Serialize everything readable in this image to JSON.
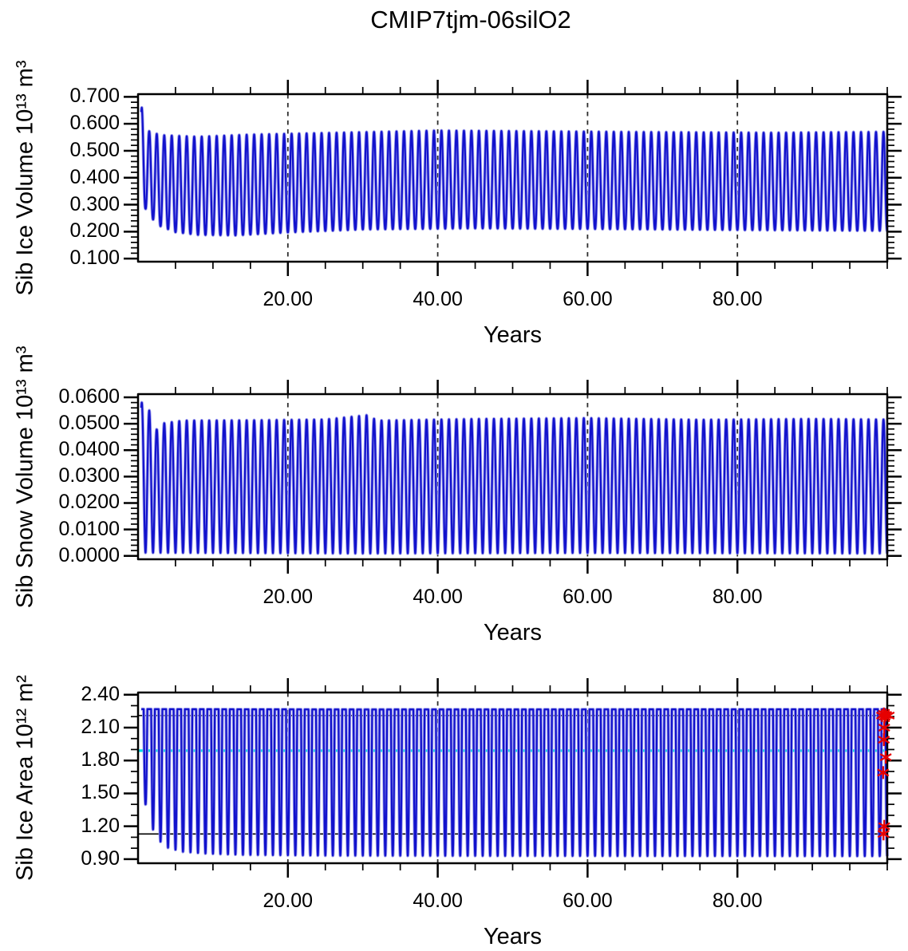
{
  "title": "CMIP7tjm-06silO2",
  "background_color": "#ffffff",
  "text_color": "#000000",
  "axis_color": "#000000",
  "gridline_color": "#2e2e2e",
  "chart_data": [
    {
      "type": "line",
      "panel": "sib-ice-volume",
      "xlabel": "Years",
      "ylabel": "Sib Ice Volume 10¹³ m³",
      "xlim": [
        0,
        100
      ],
      "ylim": [
        0.0885,
        0.71
      ],
      "x_major_ticks": [
        20,
        40,
        60,
        80
      ],
      "x_tick_labels": [
        "20.00",
        "40.00",
        "60.00",
        "80.00"
      ],
      "x_minor_step": 5,
      "y_major_ticks": [
        0.1,
        0.2,
        0.3,
        0.4,
        0.5,
        0.6,
        0.7
      ],
      "y_tick_labels": [
        "0.100",
        "0.200",
        "0.300",
        "0.400",
        "0.500",
        "0.600",
        "0.700"
      ],
      "y_minor_step": 0.02,
      "grid_x": [
        20,
        40,
        60,
        80
      ],
      "grid_style": "dashed",
      "legend": "none",
      "series": [
        {
          "name": "sib-ice-volume-annual-cycle",
          "color": "#1212cc",
          "halo_color": "#a0a0ee",
          "waveform": "pow-cos",
          "sharpness": 1.15,
          "period_years": 1,
          "t_start": 0.4375,
          "t_end": 100,
          "peak_envelope": [
            [
              0.5,
              0.66
            ],
            [
              1.5,
              0.572
            ],
            [
              3,
              0.558
            ],
            [
              8,
              0.552
            ],
            [
              15,
              0.56
            ],
            [
              25,
              0.566
            ],
            [
              40,
              0.575
            ],
            [
              55,
              0.572
            ],
            [
              70,
              0.569
            ],
            [
              85,
              0.567
            ],
            [
              99.5,
              0.57
            ]
          ],
          "trough_envelope": [
            [
              1,
              0.285
            ],
            [
              2,
              0.245
            ],
            [
              3,
              0.22
            ],
            [
              5,
              0.198
            ],
            [
              8,
              0.188
            ],
            [
              13,
              0.186
            ],
            [
              20,
              0.197
            ],
            [
              30,
              0.208
            ],
            [
              45,
              0.212
            ],
            [
              60,
              0.21
            ],
            [
              80,
              0.206
            ],
            [
              100,
              0.203
            ]
          ]
        }
      ]
    },
    {
      "type": "line",
      "panel": "sib-snow-volume",
      "xlabel": "Years",
      "ylabel": "Sib Snow Volume 10¹³ m³",
      "xlim": [
        0,
        100
      ],
      "ylim": [
        -0.0013,
        0.0612
      ],
      "x_major_ticks": [
        20,
        40,
        60,
        80
      ],
      "x_tick_labels": [
        "20.00",
        "40.00",
        "60.00",
        "80.00"
      ],
      "x_minor_step": 5,
      "y_major_ticks": [
        0.0,
        0.01,
        0.02,
        0.03,
        0.04,
        0.05,
        0.06
      ],
      "y_tick_labels": [
        "0.0000",
        "0.0100",
        "0.0200",
        "0.0300",
        "0.0400",
        "0.0500",
        "0.0600"
      ],
      "y_minor_step": 0.002,
      "grid_x": [
        20,
        40,
        60,
        80
      ],
      "grid_style": "dashed",
      "legend": "none",
      "series": [
        {
          "name": "sib-snow-volume-annual-cycle",
          "color": "#1212cc",
          "halo_color": "#a0a0ee",
          "waveform": "pow-cos",
          "sharpness": 0.9,
          "period_years": 1,
          "t_start": 0.4375,
          "t_end": 100,
          "peak_envelope": [
            [
              0.5,
              0.058
            ],
            [
              1.5,
              0.055
            ],
            [
              2.5,
              0.0478
            ],
            [
              3.5,
              0.0502
            ],
            [
              6,
              0.0512
            ],
            [
              15,
              0.0513
            ],
            [
              25,
              0.0516
            ],
            [
              30.5,
              0.0532
            ],
            [
              32,
              0.0512
            ],
            [
              45,
              0.0518
            ],
            [
              60,
              0.0521
            ],
            [
              75,
              0.0515
            ],
            [
              90,
              0.0518
            ],
            [
              99.5,
              0.0516
            ]
          ],
          "trough_envelope": [
            [
              1,
              0.0012
            ],
            [
              30,
              0.0009
            ],
            [
              60,
              0.0011
            ],
            [
              100,
              0.0009
            ]
          ]
        }
      ]
    },
    {
      "type": "line",
      "panel": "sib-ice-area",
      "xlabel": "Years",
      "ylabel": "Sib Ice Area 10¹² m²",
      "xlim": [
        0,
        100
      ],
      "ylim": [
        0.863,
        2.42
      ],
      "x_major_ticks": [
        20,
        40,
        60,
        80
      ],
      "x_tick_labels": [
        "20.00",
        "40.00",
        "60.00",
        "80.00"
      ],
      "x_minor_step": 5,
      "y_major_ticks": [
        0.9,
        1.2,
        1.5,
        1.8,
        2.1,
        2.4
      ],
      "y_tick_labels": [
        "0.90",
        "1.20",
        "1.50",
        "1.80",
        "2.10",
        "2.40"
      ],
      "y_minor_step": 0.1,
      "grid_x": [
        20,
        40,
        60,
        80
      ],
      "grid_style": "dashed",
      "legend": "none",
      "reference_lines": [
        {
          "name": "upper-black-reference",
          "value": 2.21,
          "color": "#000000",
          "width": 1.6
        },
        {
          "name": "cyan-mean-reference",
          "value": 1.89,
          "color": "#00e0e8",
          "width": 3.2
        },
        {
          "name": "lower-black-reference",
          "value": 1.13,
          "color": "#000000",
          "width": 1.6
        }
      ],
      "series": [
        {
          "name": "sib-ice-area-annual-cycle",
          "color": "#1212cc",
          "halo_color": "#a0a0ee",
          "waveform": "clipped-cos",
          "period_years": 1,
          "t_start": 0.4375,
          "t_end": 100,
          "cap_envelope": [
            [
              0.5,
              2.268
            ],
            [
              30,
              2.265
            ],
            [
              99.5,
              2.267
            ]
          ],
          "trough_envelope": [
            [
              1,
              1.4
            ],
            [
              2,
              1.17
            ],
            [
              3,
              1.06
            ],
            [
              4,
              1.005
            ],
            [
              6,
              0.968
            ],
            [
              9,
              0.952
            ],
            [
              14,
              0.94
            ],
            [
              25,
              0.933
            ],
            [
              50,
              0.93
            ],
            [
              100,
              0.928
            ]
          ]
        }
      ],
      "markers": {
        "name": "observation-asterisks",
        "shape": "asterisk",
        "color": "#e60000",
        "size": 8,
        "points": [
          [
            99.3,
            2.21
          ],
          [
            99.55,
            2.225
          ],
          [
            99.65,
            2.2
          ],
          [
            99.85,
            2.215
          ],
          [
            100.2,
            2.21
          ],
          [
            99.6,
            2.1
          ],
          [
            99.55,
            1.99
          ],
          [
            99.8,
            1.83
          ],
          [
            99.45,
            1.69
          ],
          [
            99.6,
            1.2
          ],
          [
            99.5,
            1.13
          ]
        ]
      }
    }
  ]
}
